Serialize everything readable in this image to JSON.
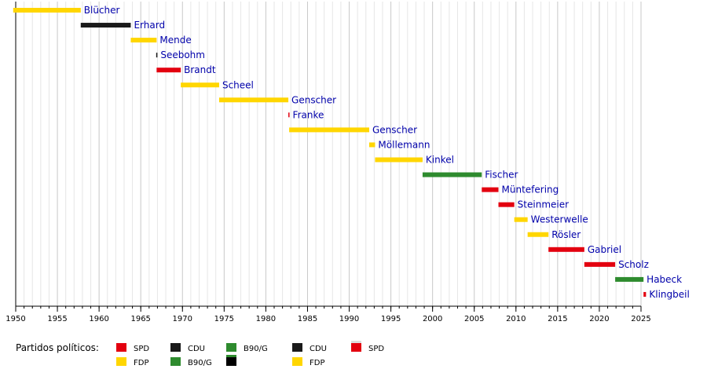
{
  "chart_data": {
    "type": "bar",
    "orientation": "horizontal",
    "xlim": [
      1950,
      2025
    ],
    "major_ticks": [
      1950,
      1955,
      1960,
      1965,
      1970,
      1975,
      1980,
      1985,
      1990,
      1995,
      2000,
      2005,
      2010,
      2015,
      2020,
      2025
    ],
    "minor_tick_step": 1,
    "grid": true,
    "party_colors": {
      "SPD": "#e3000f",
      "CDU": "#1a1a1a",
      "FDP": "#ffd600",
      "B90/G": "#2e8b2e"
    },
    "series": [
      {
        "name": "Blücher",
        "party": "FDP",
        "start": 1949.7,
        "end": 1957.8
      },
      {
        "name": "Erhard",
        "party": "CDU",
        "start": 1957.8,
        "end": 1963.8
      },
      {
        "name": "Mende",
        "party": "FDP",
        "start": 1963.8,
        "end": 1966.9
      },
      {
        "name": "Seebohm",
        "party": "CDU",
        "start": 1966.85,
        "end": 1966.95
      },
      {
        "name": "Brandt",
        "party": "SPD",
        "start": 1966.9,
        "end": 1969.8
      },
      {
        "name": "Scheel",
        "party": "FDP",
        "start": 1969.8,
        "end": 1974.4
      },
      {
        "name": "Genscher",
        "party": "FDP",
        "start": 1974.4,
        "end": 1982.7
      },
      {
        "name": "Franke",
        "party": "SPD",
        "start": 1982.7,
        "end": 1982.8
      },
      {
        "name": "Genscher",
        "party": "FDP",
        "start": 1982.8,
        "end": 1992.4
      },
      {
        "name": "Möllemann",
        "party": "FDP",
        "start": 1992.4,
        "end": 1993.1
      },
      {
        "name": "Kinkel",
        "party": "FDP",
        "start": 1993.1,
        "end": 1998.8
      },
      {
        "name": "Fischer",
        "party": "B90/G",
        "start": 1998.8,
        "end": 2005.9
      },
      {
        "name": "Müntefering",
        "party": "SPD",
        "start": 2005.9,
        "end": 2007.9
      },
      {
        "name": "Steinmeier",
        "party": "SPD",
        "start": 2007.9,
        "end": 2009.8
      },
      {
        "name": "Westerwelle",
        "party": "FDP",
        "start": 2009.8,
        "end": 2011.4
      },
      {
        "name": "Rösler",
        "party": "FDP",
        "start": 2011.4,
        "end": 2013.9
      },
      {
        "name": "Gabriel",
        "party": "SPD",
        "start": 2013.9,
        "end": 2018.2
      },
      {
        "name": "Scholz",
        "party": "SPD",
        "start": 2018.2,
        "end": 2021.9
      },
      {
        "name": "Habeck",
        "party": "B90/G",
        "start": 2021.9,
        "end": 2025.3
      },
      {
        "name": "Klingbeil",
        "party": "SPD",
        "start": 2025.3,
        "end": 2025.6
      }
    ],
    "legend": {
      "title": "Partidos políticos:",
      "columns": [
        [
          {
            "label": "SPD",
            "color": "#e3000f"
          },
          {
            "label": "FDP",
            "color": "#ffd600"
          }
        ],
        [
          {
            "label": "CDU",
            "color": "#1a1a1a"
          },
          {
            "label": "B90/G",
            "color": "#2e8b2e"
          }
        ],
        [
          {
            "label": "B90/G",
            "color": "#2e8b2e"
          },
          {
            "label": "",
            "color": "#000000",
            "top_color": "#2e8b2e"
          }
        ],
        [
          {
            "label": "CDU",
            "color": "#1a1a1a"
          },
          {
            "label": "FDP",
            "color": "#ffd600"
          }
        ],
        [
          {
            "label": "SPD",
            "color": "#e3000f",
            "top_color": "#dddddd"
          }
        ]
      ]
    }
  }
}
